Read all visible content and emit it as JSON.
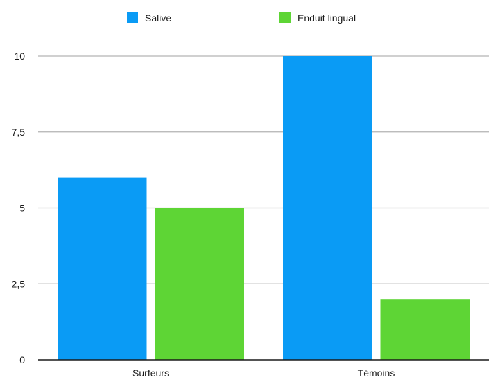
{
  "chart_data": {
    "type": "bar",
    "title": "",
    "xlabel": "",
    "ylabel": "",
    "categories": [
      "Surfeurs",
      "Témoins"
    ],
    "series": [
      {
        "name": "Salive",
        "values": [
          6,
          10
        ],
        "color": "#0a9bf5"
      },
      {
        "name": "Enduit lingual",
        "values": [
          5,
          2
        ],
        "color": "#5ed535"
      }
    ],
    "ylim": [
      0,
      10
    ],
    "yticks": [
      0,
      2.5,
      5,
      7.5,
      10
    ],
    "ytick_labels": [
      "0",
      "2,5",
      "5",
      "7,5",
      "10"
    ],
    "grid": true,
    "legend_position": "top"
  }
}
